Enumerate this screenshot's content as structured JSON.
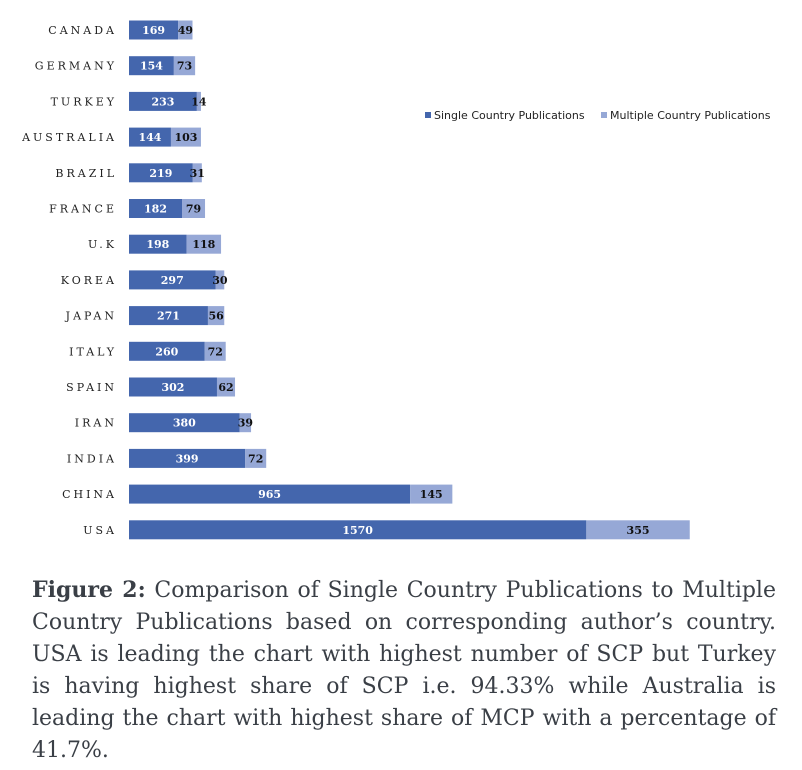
{
  "chart_data": {
    "type": "bar",
    "orientation": "horizontal",
    "stacked": true,
    "categories": [
      "CANADA",
      "GERMANY",
      "TURKEY",
      "AUSTRALIA",
      "BRAZIL",
      "FRANCE",
      "U.K",
      "KOREA",
      "JAPAN",
      "ITALY",
      "SPAIN",
      "IRAN",
      "INDIA",
      "CHINA",
      "USA"
    ],
    "series": [
      {
        "name": "Single Country Publications",
        "color": "#4466ad",
        "values": [
          169,
          154,
          233,
          144,
          219,
          182,
          198,
          297,
          271,
          260,
          302,
          380,
          399,
          965,
          1570
        ]
      },
      {
        "name": "Multiple Country Publications",
        "color": "#96a8d6",
        "values": [
          49,
          73,
          14,
          103,
          31,
          79,
          118,
          30,
          56,
          72,
          62,
          39,
          72,
          145,
          355
        ]
      }
    ],
    "legend_position": "right",
    "grid": false
  },
  "caption": {
    "lead": "Figure 2:",
    "text": " Comparison of Single Country Publications to Multiple Country Publications based on corresponding author’s country. USA is leading the chart with highest number of SCP but Turkey is having highest share of SCP i.e. 94.33% while Australia is leading the chart with highest share of MCP with a percentage of 41.7%."
  }
}
